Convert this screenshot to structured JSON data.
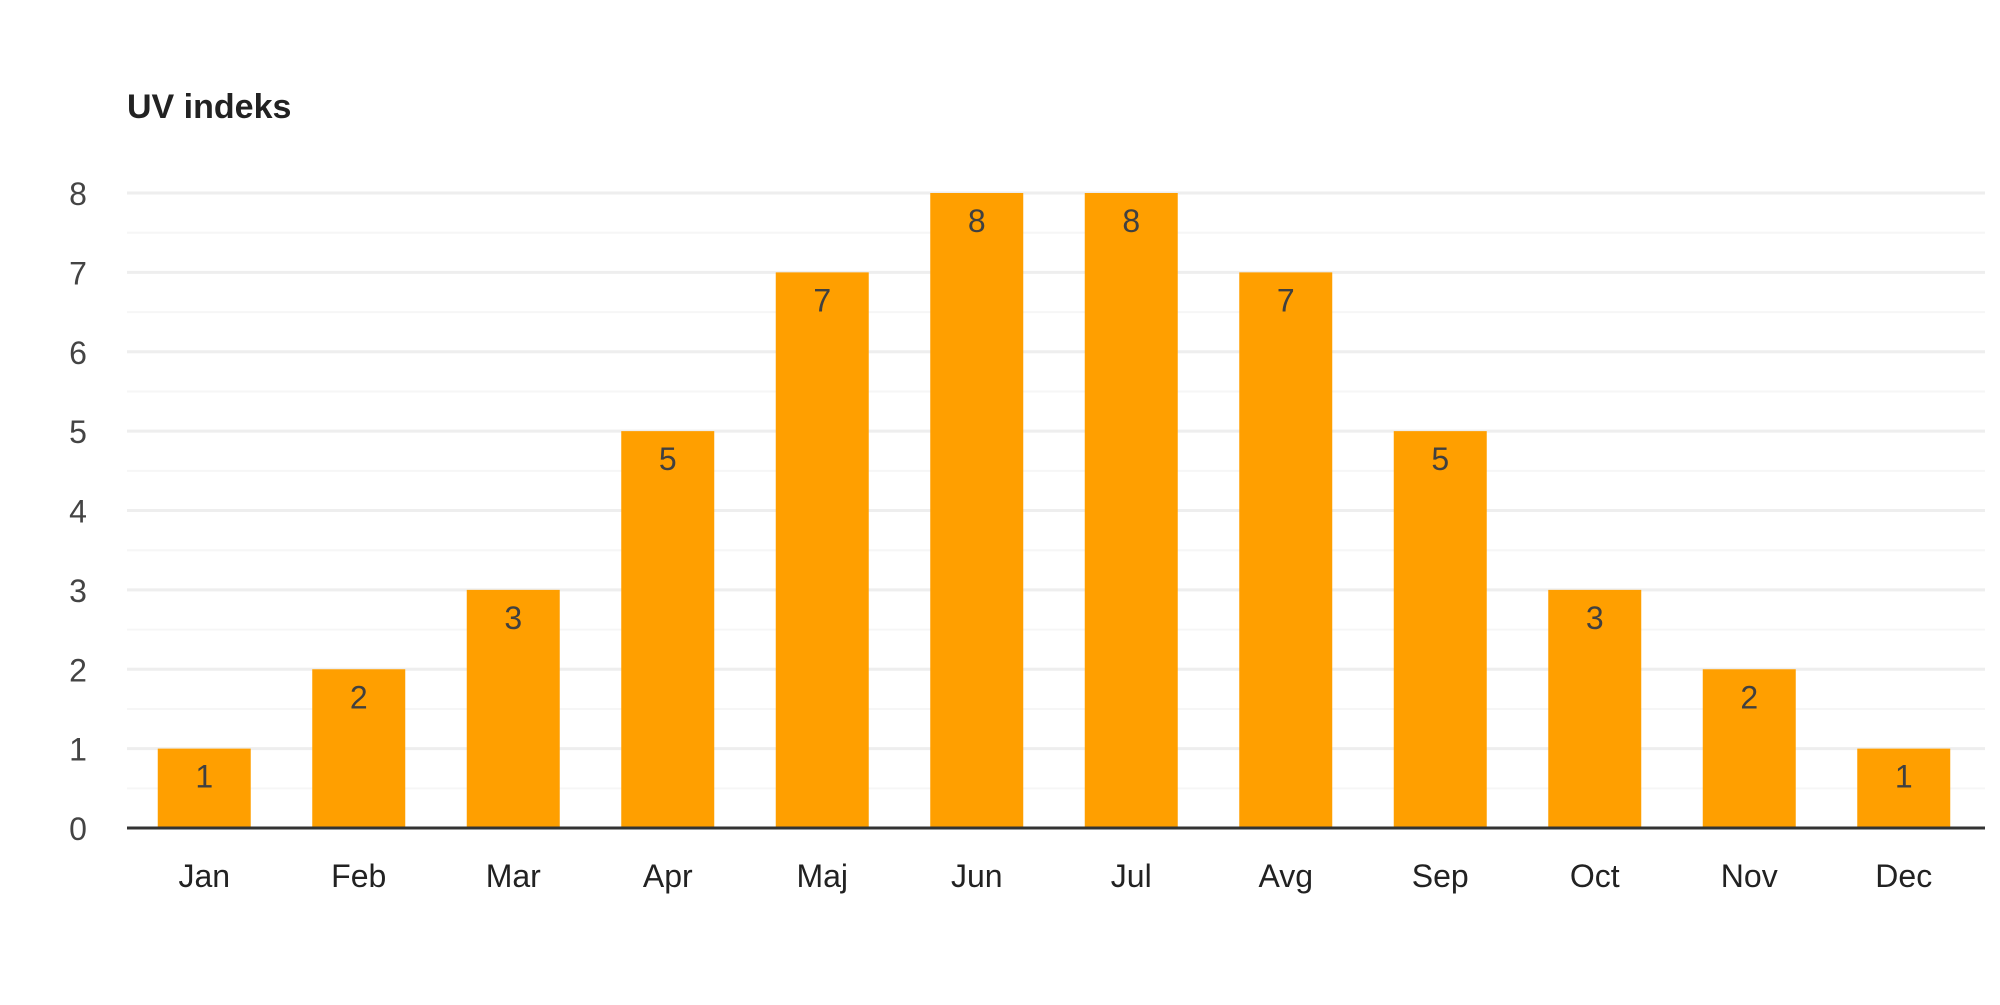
{
  "chart_data": {
    "type": "bar",
    "title": "UV indeks",
    "xlabel": "",
    "ylabel": "",
    "categories": [
      "Jan",
      "Feb",
      "Mar",
      "Apr",
      "Maj",
      "Jun",
      "Jul",
      "Avg",
      "Sep",
      "Oct",
      "Nov",
      "Dec"
    ],
    "values": [
      1,
      2,
      3,
      5,
      7,
      8,
      8,
      7,
      5,
      3,
      2,
      1
    ],
    "ylim": [
      0,
      8
    ],
    "yticks": [
      0,
      1,
      2,
      3,
      4,
      5,
      6,
      7,
      8
    ],
    "data_labels": true,
    "grid": true,
    "minor_grid": true,
    "legend": "none",
    "colors": {
      "bar": "#ff9f00",
      "gridline": "#eeeeee",
      "minor_gridline": "#f6f6f6",
      "baseline": "#333333",
      "tick_text": "#444444",
      "category_text": "#222222",
      "data_label_text": "#404040"
    }
  }
}
